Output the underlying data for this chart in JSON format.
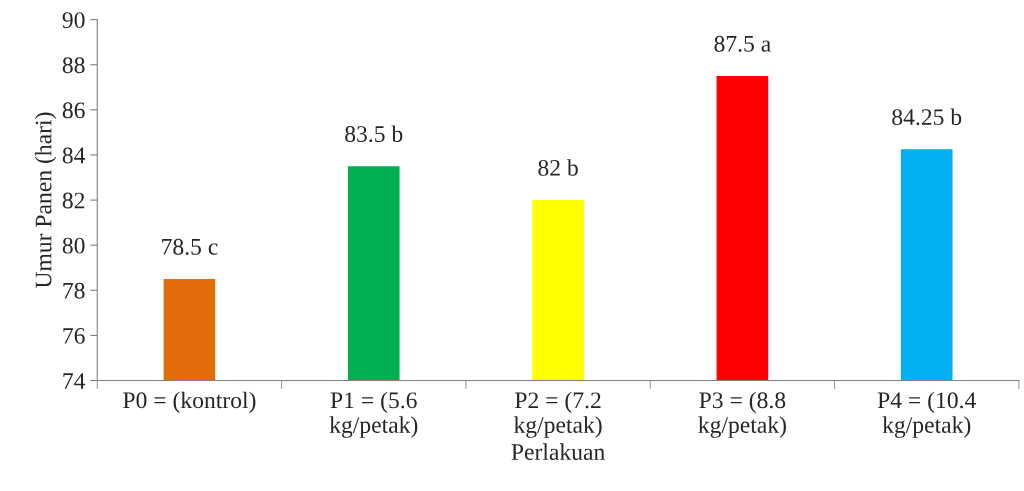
{
  "chart_data": {
    "type": "bar",
    "xlabel": "Perlakuan",
    "ylabel": "Umur Panen (hari)",
    "categories": [
      "P0 = (kontrol)",
      "P1 = (5.6\nkg/petak)",
      "P2 = (7.2\nkg/petak)",
      "P3 = (8.8\nkg/petak)",
      "P4 = (10.4\nkg/petak)"
    ],
    "values": [
      78.5,
      83.5,
      82,
      87.5,
      84.25
    ],
    "colors": [
      "#e36c0a",
      "#00b050",
      "#ffff00",
      "#ff0000",
      "#00b0f0"
    ],
    "value_labels": [
      "78.5 c",
      "83.5 b",
      "82 b",
      "87.5 a",
      "84.25 b"
    ],
    "ylim": [
      74,
      90
    ],
    "yticks": [
      74,
      76,
      78,
      80,
      82,
      84,
      86,
      88,
      90
    ],
    "grid": false,
    "legend": false
  }
}
